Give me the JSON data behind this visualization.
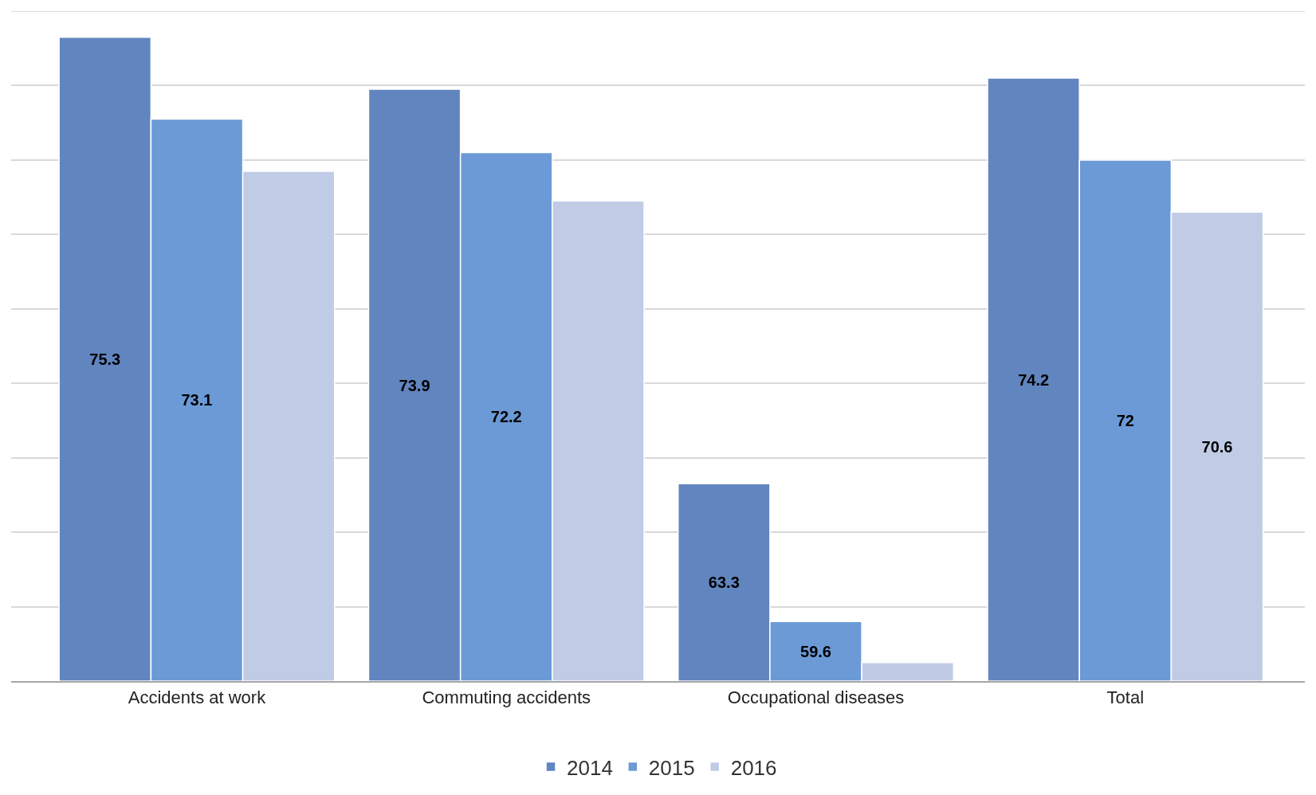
{
  "chart_data": {
    "type": "bar",
    "categories": [
      "Accidents at work",
      "Commuting accidents",
      "Occupational diseases",
      "Total"
    ],
    "series": [
      {
        "name": "2014",
        "color": "#6185bf",
        "values": [
          75.3,
          73.9,
          63.3,
          74.2
        ],
        "value_labels": [
          "75.3",
          "73.9",
          "63.3",
          "74.2"
        ]
      },
      {
        "name": "2015",
        "color": "#6b9ad6",
        "values": [
          73.1,
          72.2,
          59.6,
          72
        ],
        "value_labels": [
          "73.1",
          "72.2",
          "59.6",
          "72"
        ]
      },
      {
        "name": "2016",
        "color": "#c0cce6",
        "values": [
          71.7,
          70.9,
          58.5,
          70.6
        ],
        "value_labels": [
          null,
          null,
          null,
          "70.6"
        ]
      }
    ],
    "ylim": [
      58,
      76
    ],
    "yticks": [
      {
        "value": 58,
        "label": null
      },
      {
        "value": 60,
        "label": null
      },
      {
        "value": 62,
        "label": null
      },
      {
        "value": 64,
        "label": null
      },
      {
        "value": 66,
        "label": null
      },
      {
        "value": 68,
        "label": null
      },
      {
        "value": 70,
        "label": null
      },
      {
        "value": 72,
        "label": null
      },
      {
        "value": 74,
        "label": null
      },
      {
        "value": 76,
        "label": null
      }
    ],
    "tick_labels": "x",
    "grid": "y",
    "legend": "bottom"
  }
}
